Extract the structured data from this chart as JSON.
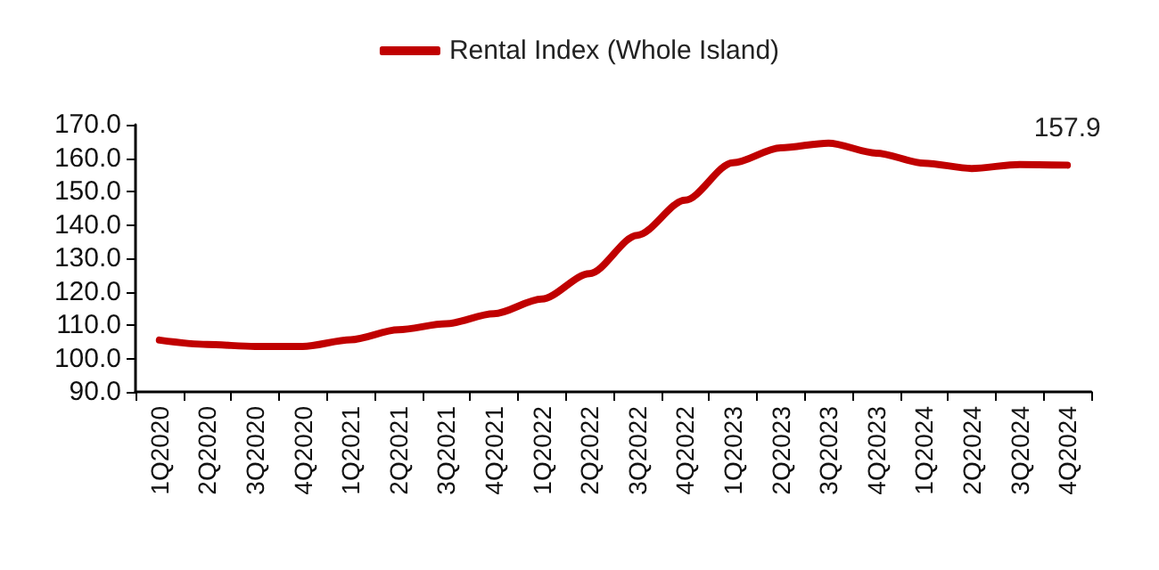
{
  "chart_data": {
    "type": "line",
    "categories": [
      "1Q2020",
      "2Q2020",
      "3Q2020",
      "4Q2020",
      "1Q2021",
      "2Q2021",
      "3Q2021",
      "4Q2021",
      "1Q2022",
      "2Q2022",
      "3Q2022",
      "4Q2022",
      "1Q2023",
      "2Q2023",
      "3Q2023",
      "4Q2023",
      "1Q2024",
      "2Q2024",
      "3Q2024",
      "4Q2024"
    ],
    "series": [
      {
        "name": "Rental Index (Whole Island)",
        "color": "#c00000",
        "values": [
          105.5,
          104.2,
          103.6,
          103.6,
          105.6,
          108.6,
          110.4,
          113.4,
          117.8,
          125.4,
          136.9,
          147.4,
          158.6,
          163.1,
          164.5,
          161.5,
          158.5,
          156.9,
          158.1,
          157.9
        ],
        "value_labels": [
          null,
          null,
          null,
          null,
          null,
          null,
          null,
          null,
          null,
          null,
          null,
          null,
          null,
          null,
          null,
          null,
          null,
          null,
          null,
          "157.9"
        ]
      }
    ],
    "ylim": [
      90,
      170
    ],
    "yticks": [
      {
        "value": 90,
        "label": "90.0"
      },
      {
        "value": 100,
        "label": "100.0"
      },
      {
        "value": 110,
        "label": "110.0"
      },
      {
        "value": 120,
        "label": "120.0"
      },
      {
        "value": 130,
        "label": "130.0"
      },
      {
        "value": 140,
        "label": "140.0"
      },
      {
        "value": 150,
        "label": "150.0"
      },
      {
        "value": 160,
        "label": "160.0"
      },
      {
        "value": 170,
        "label": "170.0"
      }
    ],
    "grid": false,
    "legend": "top",
    "marker": "none",
    "line_style": "solid"
  }
}
